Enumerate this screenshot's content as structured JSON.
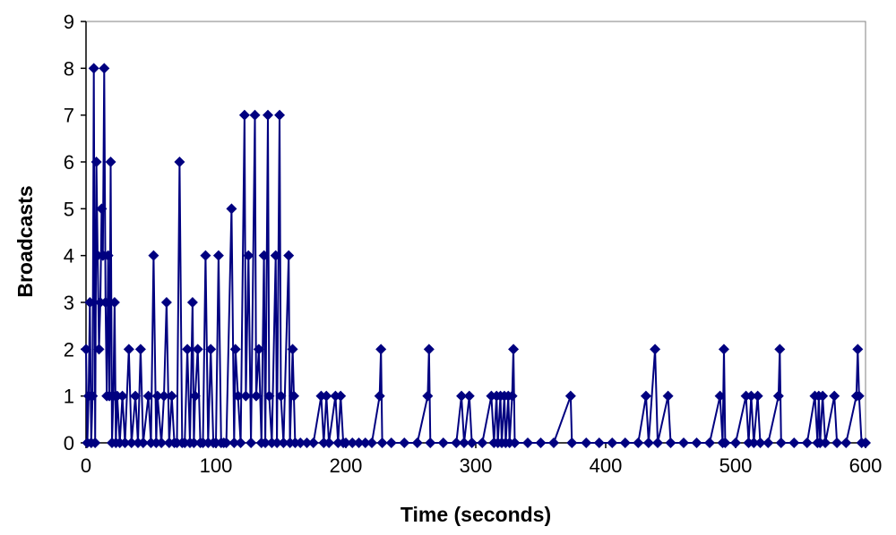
{
  "chart_data": {
    "type": "line",
    "title": "",
    "xlabel": "Time (seconds)",
    "ylabel": "Broadcasts",
    "xlim": [
      0,
      600
    ],
    "ylim": [
      0,
      9
    ],
    "x_ticks": [
      0,
      100,
      200,
      300,
      400,
      500,
      600
    ],
    "y_ticks": [
      0,
      1,
      2,
      3,
      4,
      5,
      6,
      7,
      8,
      9
    ],
    "grid": false,
    "legend": "none",
    "marker": "diamond",
    "colors": {
      "series": "#000080",
      "axis": "#000000",
      "frame": "#808080",
      "background": "#ffffff"
    },
    "series": [
      {
        "points": [
          [
            0,
            2
          ],
          [
            1,
            0
          ],
          [
            2,
            1
          ],
          [
            3,
            3
          ],
          [
            4,
            0
          ],
          [
            5,
            1
          ],
          [
            6,
            8
          ],
          [
            7,
            0
          ],
          [
            8,
            6
          ],
          [
            9,
            4
          ],
          [
            10,
            2
          ],
          [
            11,
            3
          ],
          [
            12,
            5
          ],
          [
            13,
            4
          ],
          [
            14,
            8
          ],
          [
            15,
            3
          ],
          [
            16,
            1
          ],
          [
            17,
            4
          ],
          [
            18,
            1
          ],
          [
            19,
            6
          ],
          [
            20,
            0
          ],
          [
            21,
            1
          ],
          [
            22,
            3
          ],
          [
            23,
            0
          ],
          [
            24,
            1
          ],
          [
            26,
            0
          ],
          [
            28,
            1
          ],
          [
            30,
            0
          ],
          [
            33,
            2
          ],
          [
            35,
            0
          ],
          [
            38,
            1
          ],
          [
            40,
            0
          ],
          [
            42,
            2
          ],
          [
            44,
            0
          ],
          [
            48,
            1
          ],
          [
            50,
            0
          ],
          [
            52,
            4
          ],
          [
            54,
            0
          ],
          [
            55,
            1
          ],
          [
            58,
            0
          ],
          [
            60,
            1
          ],
          [
            62,
            3
          ],
          [
            64,
            0
          ],
          [
            66,
            1
          ],
          [
            68,
            0
          ],
          [
            70,
            0
          ],
          [
            72,
            6
          ],
          [
            74,
            0
          ],
          [
            76,
            0
          ],
          [
            78,
            2
          ],
          [
            80,
            0
          ],
          [
            82,
            3
          ],
          [
            83,
            0
          ],
          [
            84,
            1
          ],
          [
            86,
            2
          ],
          [
            88,
            0
          ],
          [
            90,
            0
          ],
          [
            92,
            4
          ],
          [
            94,
            0
          ],
          [
            96,
            2
          ],
          [
            98,
            0
          ],
          [
            100,
            0
          ],
          [
            102,
            4
          ],
          [
            104,
            0
          ],
          [
            106,
            0
          ],
          [
            108,
            0
          ],
          [
            112,
            5
          ],
          [
            114,
            0
          ],
          [
            115,
            2
          ],
          [
            117,
            1
          ],
          [
            119,
            0
          ],
          [
            122,
            7
          ],
          [
            123,
            1
          ],
          [
            125,
            4
          ],
          [
            127,
            0
          ],
          [
            130,
            7
          ],
          [
            131,
            1
          ],
          [
            133,
            2
          ],
          [
            135,
            0
          ],
          [
            137,
            4
          ],
          [
            138,
            0
          ],
          [
            140,
            7
          ],
          [
            141,
            1
          ],
          [
            143,
            0
          ],
          [
            146,
            4
          ],
          [
            147,
            0
          ],
          [
            149,
            7
          ],
          [
            150,
            1
          ],
          [
            152,
            0
          ],
          [
            156,
            4
          ],
          [
            157,
            0
          ],
          [
            159,
            2
          ],
          [
            160,
            1
          ],
          [
            161,
            0
          ],
          [
            165,
            0
          ],
          [
            170,
            0
          ],
          [
            175,
            0
          ],
          [
            181,
            1
          ],
          [
            183,
            0
          ],
          [
            185,
            1
          ],
          [
            187,
            0
          ],
          [
            192,
            1
          ],
          [
            194,
            0
          ],
          [
            196,
            1
          ],
          [
            198,
            0
          ],
          [
            200,
            0
          ],
          [
            205,
            0
          ],
          [
            210,
            0
          ],
          [
            215,
            0
          ],
          [
            220,
            0
          ],
          [
            226,
            1
          ],
          [
            227,
            2
          ],
          [
            228,
            0
          ],
          [
            235,
            0
          ],
          [
            245,
            0
          ],
          [
            255,
            0
          ],
          [
            263,
            1
          ],
          [
            264,
            2
          ],
          [
            265,
            0
          ],
          [
            275,
            0
          ],
          [
            285,
            0
          ],
          [
            289,
            1
          ],
          [
            291,
            0
          ],
          [
            295,
            1
          ],
          [
            297,
            0
          ],
          [
            305,
            0
          ],
          [
            312,
            1
          ],
          [
            314,
            0
          ],
          [
            316,
            1
          ],
          [
            317,
            0
          ],
          [
            319,
            1
          ],
          [
            320,
            0
          ],
          [
            322,
            1
          ],
          [
            323,
            0
          ],
          [
            325,
            1
          ],
          [
            326,
            0
          ],
          [
            328,
            1
          ],
          [
            329,
            2
          ],
          [
            330,
            0
          ],
          [
            340,
            0
          ],
          [
            350,
            0
          ],
          [
            360,
            0
          ],
          [
            373,
            1
          ],
          [
            374,
            0
          ],
          [
            385,
            0
          ],
          [
            395,
            0
          ],
          [
            405,
            0
          ],
          [
            415,
            0
          ],
          [
            425,
            0
          ],
          [
            431,
            1
          ],
          [
            433,
            0
          ],
          [
            438,
            2
          ],
          [
            440,
            0
          ],
          [
            448,
            1
          ],
          [
            450,
            0
          ],
          [
            460,
            0
          ],
          [
            470,
            0
          ],
          [
            480,
            0
          ],
          [
            488,
            1
          ],
          [
            490,
            0
          ],
          [
            491,
            2
          ],
          [
            492,
            0
          ],
          [
            500,
            0
          ],
          [
            508,
            1
          ],
          [
            510,
            0
          ],
          [
            512,
            1
          ],
          [
            514,
            0
          ],
          [
            517,
            1
          ],
          [
            519,
            0
          ],
          [
            525,
            0
          ],
          [
            533,
            1
          ],
          [
            534,
            2
          ],
          [
            535,
            0
          ],
          [
            545,
            0
          ],
          [
            555,
            0
          ],
          [
            561,
            1
          ],
          [
            563,
            0
          ],
          [
            564,
            1
          ],
          [
            565,
            0
          ],
          [
            567,
            1
          ],
          [
            569,
            0
          ],
          [
            576,
            1
          ],
          [
            578,
            0
          ],
          [
            585,
            0
          ],
          [
            593,
            1
          ],
          [
            594,
            2
          ],
          [
            595,
            1
          ],
          [
            597,
            0
          ],
          [
            600,
            0
          ]
        ]
      }
    ]
  }
}
